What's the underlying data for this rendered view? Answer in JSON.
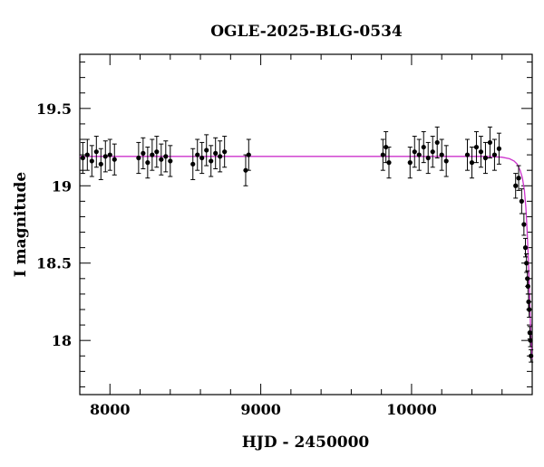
{
  "chart_data": {
    "type": "scatter",
    "title": "OGLE-2025-BLG-0534",
    "xlabel": "HJD - 2450000",
    "ylabel": "I magnitude",
    "xlim": [
      7800,
      10800
    ],
    "ylim": [
      19.85,
      17.65
    ],
    "y_inverted": true,
    "xticks": [
      8000,
      9000,
      10000
    ],
    "yticks": [
      18,
      18.5,
      19,
      19.5
    ],
    "grid": false,
    "colors": {
      "points": "#000000",
      "model": "#cc33cc",
      "axes": "#000000"
    },
    "series": [
      {
        "kind": "points-with-errorbars",
        "x": [
          7820,
          7850,
          7880,
          7910,
          7940,
          7970,
          8000,
          8030,
          8190,
          8220,
          8250,
          8280,
          8310,
          8340,
          8370,
          8400,
          8550,
          8580,
          8610,
          8640,
          8670,
          8700,
          8730,
          8760,
          8900,
          8920,
          9810,
          9830,
          9850,
          9990,
          10020,
          10050,
          10080,
          10110,
          10140,
          10170,
          10200,
          10230,
          10370,
          10400,
          10430,
          10460,
          10490,
          10520,
          10550,
          10580,
          10690,
          10710,
          10730,
          10745,
          10755,
          10762,
          10768,
          10772,
          10776,
          10780,
          10784,
          10788,
          10792
        ],
        "y": [
          19.18,
          19.2,
          19.16,
          19.22,
          19.14,
          19.19,
          19.2,
          19.17,
          19.18,
          19.21,
          19.15,
          19.2,
          19.22,
          19.17,
          19.19,
          19.16,
          19.14,
          19.2,
          19.18,
          19.23,
          19.16,
          19.21,
          19.19,
          19.22,
          19.1,
          19.2,
          19.2,
          19.25,
          19.15,
          19.15,
          19.22,
          19.2,
          19.25,
          19.18,
          19.22,
          19.28,
          19.2,
          19.16,
          19.2,
          19.15,
          19.25,
          19.22,
          19.18,
          19.28,
          19.2,
          19.24,
          19.0,
          19.05,
          18.9,
          18.75,
          18.6,
          18.5,
          18.4,
          18.35,
          18.25,
          18.2,
          18.05,
          18.0,
          17.9
        ],
        "err": [
          0.1,
          0.1,
          0.1,
          0.1,
          0.1,
          0.1,
          0.1,
          0.1,
          0.1,
          0.1,
          0.1,
          0.1,
          0.1,
          0.1,
          0.1,
          0.1,
          0.1,
          0.1,
          0.1,
          0.1,
          0.1,
          0.1,
          0.1,
          0.1,
          0.1,
          0.1,
          0.1,
          0.1,
          0.1,
          0.1,
          0.1,
          0.1,
          0.1,
          0.1,
          0.1,
          0.1,
          0.1,
          0.1,
          0.1,
          0.1,
          0.1,
          0.1,
          0.1,
          0.1,
          0.1,
          0.1,
          0.08,
          0.08,
          0.08,
          0.07,
          0.06,
          0.06,
          0.05,
          0.05,
          0.05,
          0.05,
          0.04,
          0.04,
          0.04
        ]
      },
      {
        "kind": "model-line",
        "x": [
          7800,
          9000,
          10000,
          10500,
          10600,
          10650,
          10680,
          10700,
          10720,
          10735,
          10748,
          10758,
          10766,
          10773,
          10779,
          10785,
          10790,
          10795,
          10800
        ],
        "y": [
          19.19,
          19.19,
          19.19,
          19.19,
          19.185,
          19.175,
          19.16,
          19.14,
          19.1,
          19.05,
          18.97,
          18.86,
          18.72,
          18.56,
          18.4,
          18.22,
          18.06,
          17.95,
          17.88
        ]
      }
    ]
  }
}
